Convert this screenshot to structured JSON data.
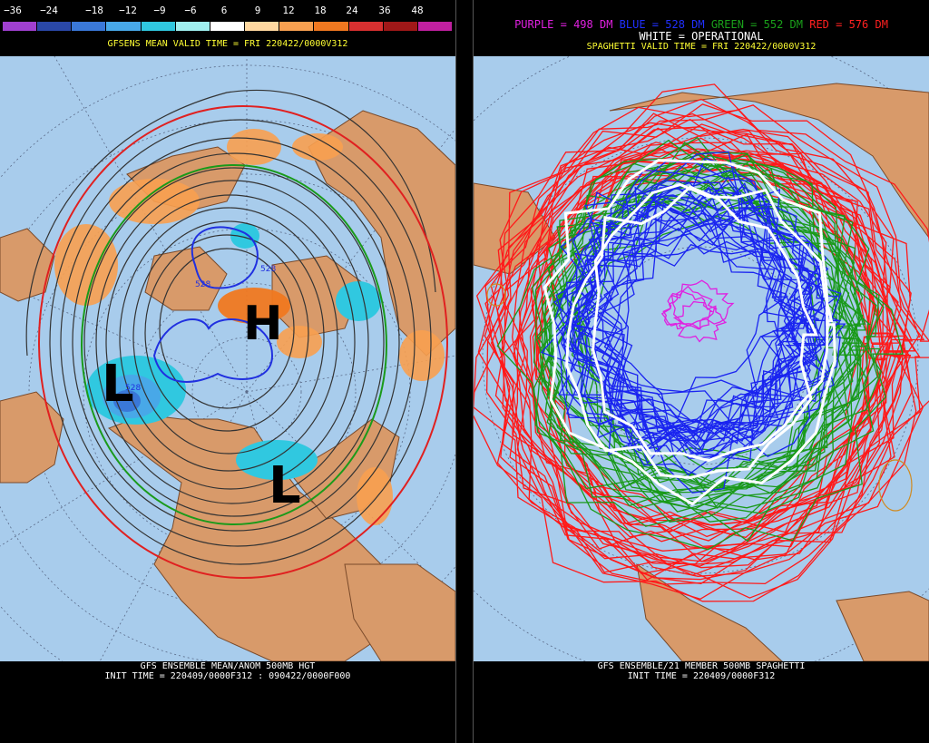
{
  "left_panel": {
    "colorbar": {
      "labels": [
        "−36",
        "−24",
        "−18",
        "−12",
        "−9",
        "−6",
        "6",
        "9",
        "12",
        "18",
        "24",
        "36",
        "48"
      ],
      "colors": [
        "#a040d0",
        "#2a48a8",
        "#3a78d8",
        "#48a8e8",
        "#30c8e0",
        "#a0f0f0",
        "#ffffff",
        "#ffd8a0",
        "#f8a050",
        "#f07820",
        "#d83030",
        "#a01818",
        "#c020a0"
      ]
    },
    "subtitle": "GFSENS MEAN VALID TIME = FRI 220422/0000V312",
    "map_labels": {
      "high": "H",
      "low_pacific": "L",
      "low_east": "L",
      "contour_528_a": "528",
      "contour_528_b": "528",
      "contour_528_c": "528"
    },
    "footer_line1": "GFS ENSEMBLE MEAN/ANOM 500MB HGT",
    "footer_line2": "INIT TIME = 220409/0000F312 : 090422/0000F000"
  },
  "right_panel": {
    "legend": [
      {
        "text": "PURPLE = 498 DM",
        "color": "#e020e0"
      },
      {
        "text": "BLUE = 528 DM",
        "color": "#2030ff"
      },
      {
        "text": "GREEN = 552 DM",
        "color": "#1aa01a"
      },
      {
        "text": "RED = 576 DM",
        "color": "#ff2020"
      }
    ],
    "legend_white": "WHITE = OPERATIONAL",
    "subtitle": "SPAGHETTI VALID TIME = FRI 220422/0000V312",
    "footer_line1": "GFS ENSEMBLE/21 MEMBER 500MB SPAGHETTI",
    "footer_line2": "INIT TIME = 220409/0000F312"
  },
  "colors": {
    "ocean": "#a8ccec",
    "land": "#d89a6a",
    "border": "#7a4a2a"
  }
}
